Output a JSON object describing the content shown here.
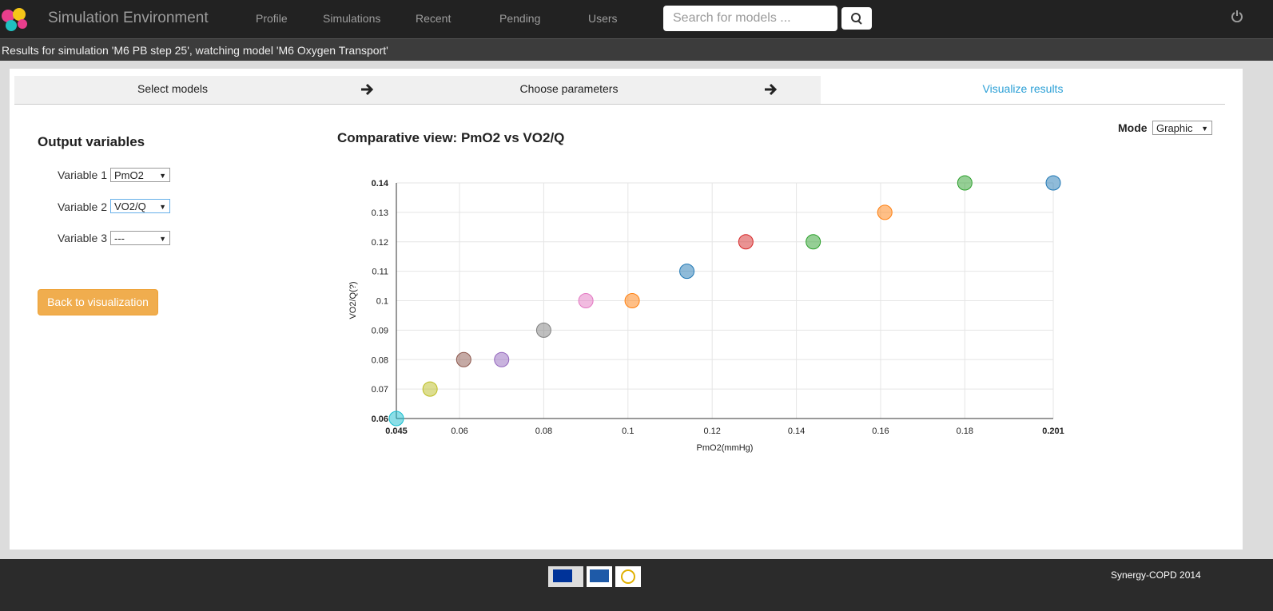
{
  "navbar": {
    "brand": "Simulation Environment",
    "items": [
      "Profile",
      "Simulations",
      "Recent",
      "Pending",
      "Users"
    ],
    "search_placeholder": "Search for models ..."
  },
  "status": "Results for simulation 'M6 PB step 25', watching model 'M6 Oxygen Transport'",
  "steps": [
    "Select models",
    "Choose parameters",
    "Visualize results"
  ],
  "sidebar": {
    "title": "Output variables",
    "variables": [
      {
        "label": "Variable 1",
        "value": "PmO2"
      },
      {
        "label": "Variable 2",
        "value": "VO2/Q"
      },
      {
        "label": "Variable 3",
        "value": "---"
      }
    ],
    "button": "Back to visualization"
  },
  "mode": {
    "label": "Mode",
    "value": "Graphic"
  },
  "chart_data": {
    "type": "scatter",
    "title": "Comparative view: PmO2 vs VO2/Q",
    "x_label": "PmO2(mmHg)",
    "y_label": "VO2/Q(?)",
    "x": [
      0.045,
      0.053,
      0.061,
      0.07,
      0.08,
      0.09,
      0.101,
      0.114,
      0.128,
      0.144,
      0.161,
      0.18,
      0.201
    ],
    "values": [
      0.06,
      0.07,
      0.08,
      0.08,
      0.09,
      0.1,
      0.1,
      0.11,
      0.12,
      0.12,
      0.13,
      0.14,
      0.14
    ],
    "colors": [
      "#17becf",
      "#bcbd22",
      "#8c564b",
      "#9467bd",
      "#7f7f7f",
      "#e377c2",
      "#ff7f0e",
      "#1f77b4",
      "#d62728",
      "#2ca02c",
      "#ff7f0e",
      "#2ca02c",
      "#1f77b4"
    ],
    "xlim": [
      0.045,
      0.201
    ],
    "ylim": [
      0.06,
      0.14
    ],
    "xticks": [
      0.045,
      0.06,
      0.08,
      0.1,
      0.12,
      0.14,
      0.16,
      0.18,
      0.201
    ],
    "yticks": [
      0.06,
      0.07,
      0.08,
      0.09,
      0.1,
      0.11,
      0.12,
      0.13,
      0.14
    ],
    "grid": true
  },
  "footer": "Synergy-COPD 2014"
}
